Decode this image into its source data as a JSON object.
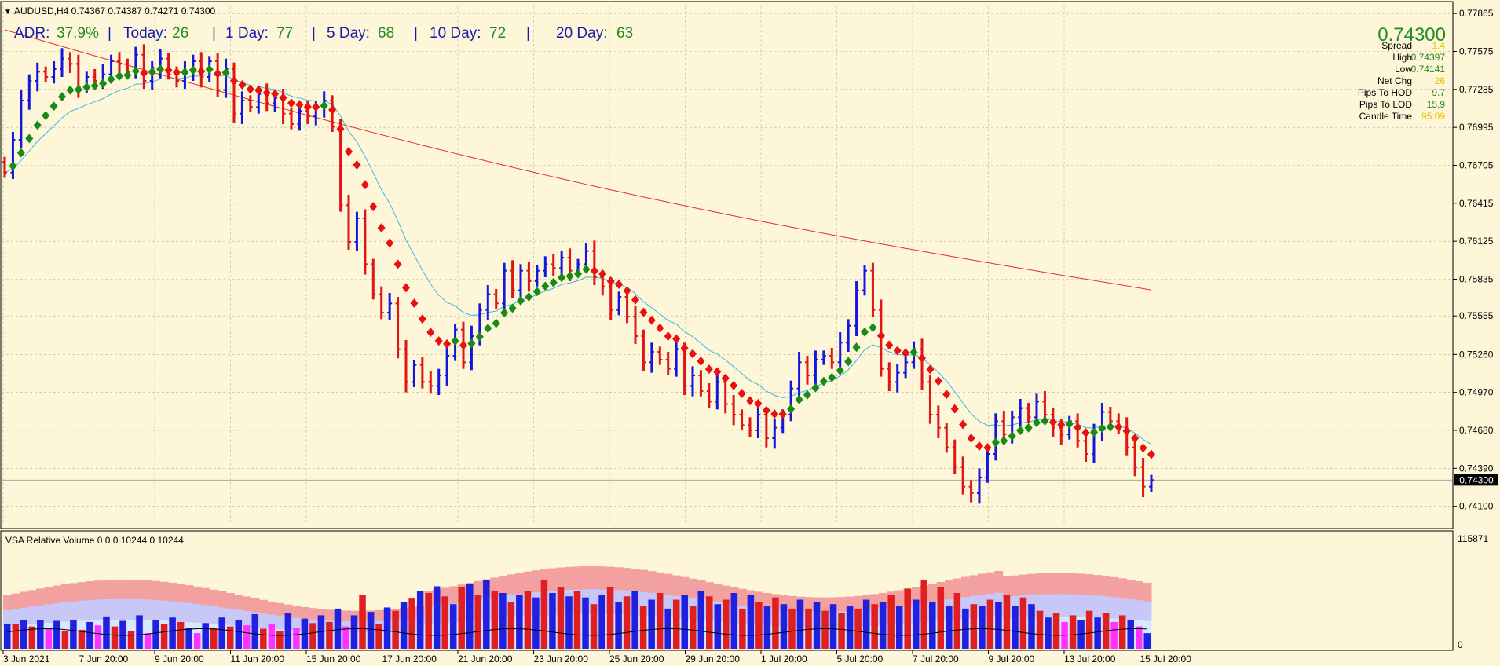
{
  "header": {
    "symbol_line": "AUDUSD,H4  0.74367 0.74387 0.74271 0.74300"
  },
  "adr_bar": {
    "adr_label": "ADR:",
    "adr_value": "37.9%",
    "today_label": "Today:",
    "today_value": "26",
    "day1_label": "1 Day:",
    "day1_value": "77",
    "day5_label": "5 Day:",
    "day5_value": "68",
    "day10_label": "10 Day:",
    "day10_value": "72",
    "day20_label": "20 Day:",
    "day20_value": "63",
    "sep": "|"
  },
  "info_panel": {
    "price": "0.74300",
    "rows": [
      {
        "label": "Spread",
        "value": "1.4",
        "color": "#e8c400"
      },
      {
        "label": "High",
        "value": "0.74397",
        "color": "#228b22"
      },
      {
        "label": "Low",
        "value": "0.74141",
        "color": "#228b22"
      },
      {
        "label": "Net Chg",
        "value": "26",
        "color": "#e8c400"
      },
      {
        "label": "Pips To HOD",
        "value": "9.7",
        "color": "#228b22"
      },
      {
        "label": "Pips To LOD",
        "value": "15.9",
        "color": "#228b22"
      },
      {
        "label": "Candle Time",
        "value": "95:09",
        "color": "#e8c400"
      }
    ]
  },
  "current_price_tag": "0.74300",
  "volume_panel": {
    "title": "VSA Relative Volume 0 0 0 10244 0 10244",
    "top_label": "115871",
    "bottom_label": "0",
    "values": [
      22,
      22,
      26,
      20,
      26,
      18,
      25,
      16,
      26,
      17,
      24,
      21,
      29,
      20,
      25,
      16,
      30,
      14,
      26,
      22,
      28,
      24,
      19,
      14,
      23,
      19,
      28,
      20,
      26,
      21,
      31,
      18,
      22,
      16,
      32,
      19,
      27,
      23,
      30,
      24,
      36,
      20,
      30,
      48,
      33,
      22,
      37,
      34,
      42,
      45,
      52,
      50,
      56,
      47,
      40,
      55,
      58,
      48,
      62,
      52,
      50,
      42,
      48,
      52,
      46,
      62,
      50,
      55,
      47,
      52,
      46,
      40,
      48,
      55,
      42,
      47,
      52,
      38,
      44,
      50,
      36,
      44,
      48,
      38,
      52,
      47,
      40,
      44,
      50,
      36,
      48,
      42,
      38,
      46,
      40,
      36,
      44,
      36,
      42,
      34,
      40,
      32,
      38,
      36,
      44,
      40,
      42,
      48,
      38,
      54,
      44,
      62,
      42,
      55,
      38,
      50,
      36,
      40,
      38,
      44,
      42,
      48,
      38,
      46,
      40,
      34,
      28,
      32,
      24,
      30,
      26,
      34,
      28,
      32,
      24,
      30,
      26,
      20,
      14
    ],
    "colors": [
      "#2020e0",
      "#e02020",
      "#ff33ff"
    ]
  },
  "chart_data": {
    "type": "candlestick",
    "symbol": "AUDUSD",
    "timeframe": "H4",
    "ylim": [
      0.7396,
      0.7792
    ],
    "y_ticks": [
      "0.77865",
      "0.77575",
      "0.77285",
      "0.76995",
      "0.76705",
      "0.76415",
      "0.76125",
      "0.75835",
      "0.75555",
      "0.75260",
      "0.74970",
      "0.74680",
      "0.74390",
      "0.74100"
    ],
    "x_ticks": [
      "3 Jun 2021",
      "7 Jun 20:00",
      "9 Jun 20:00",
      "11 Jun 20:00",
      "15 Jun 20:00",
      "17 Jun 20:00",
      "21 Jun 20:00",
      "23 Jun 20:00",
      "25 Jun 20:00",
      "29 Jun 20:00",
      "1 Jul 20:00",
      "5 Jul 20:00",
      "7 Jul 20:00",
      "9 Jul 20:00",
      "13 Jul 20:00",
      "15 Jul 20:00"
    ],
    "close_series": [
      0.7665,
      0.769,
      0.772,
      0.7735,
      0.7742,
      0.7738,
      0.7744,
      0.7752,
      0.7748,
      0.773,
      0.7738,
      0.7735,
      0.774,
      0.775,
      0.7748,
      0.7742,
      0.7755,
      0.7735,
      0.7745,
      0.7752,
      0.774,
      0.7735,
      0.7742,
      0.775,
      0.7738,
      0.775,
      0.7728,
      0.7744,
      0.771,
      0.772,
      0.7715,
      0.7725,
      0.7718,
      0.7722,
      0.771,
      0.7702,
      0.7712,
      0.7708,
      0.7715,
      0.772,
      0.77,
      0.764,
      0.7612,
      0.763,
      0.7595,
      0.7572,
      0.7558,
      0.7565,
      0.753,
      0.7505,
      0.7518,
      0.7505,
      0.7502,
      0.751,
      0.7525,
      0.7545,
      0.752,
      0.754,
      0.756,
      0.7572,
      0.7565,
      0.759,
      0.7575,
      0.759,
      0.7582,
      0.759,
      0.7595,
      0.7592,
      0.76,
      0.759,
      0.7595,
      0.7605,
      0.7585,
      0.7578,
      0.756,
      0.757,
      0.7555,
      0.754,
      0.752,
      0.7528,
      0.7522,
      0.7515,
      0.753,
      0.7502,
      0.751,
      0.7498,
      0.749,
      0.7505,
      0.7488,
      0.748,
      0.7472,
      0.7468,
      0.748,
      0.7462,
      0.747,
      0.748,
      0.75,
      0.752,
      0.751,
      0.7522,
      0.7525,
      0.752,
      0.7535,
      0.7548,
      0.7575,
      0.759,
      0.756,
      0.7515,
      0.7505,
      0.7512,
      0.752,
      0.753,
      0.7505,
      0.748,
      0.747,
      0.7455,
      0.744,
      0.7425,
      0.742,
      0.7432,
      0.745,
      0.7475,
      0.7465,
      0.7478,
      0.7485,
      0.7478,
      0.749,
      0.748,
      0.747,
      0.7465,
      0.7475,
      0.746,
      0.745,
      0.7468,
      0.7482,
      0.7475,
      0.747,
      0.7455,
      0.744,
      0.7425,
      0.743
    ],
    "ma_slow_start": 0.7774,
    "ma_slow_end": 0.7558,
    "last_price": 0.743
  }
}
